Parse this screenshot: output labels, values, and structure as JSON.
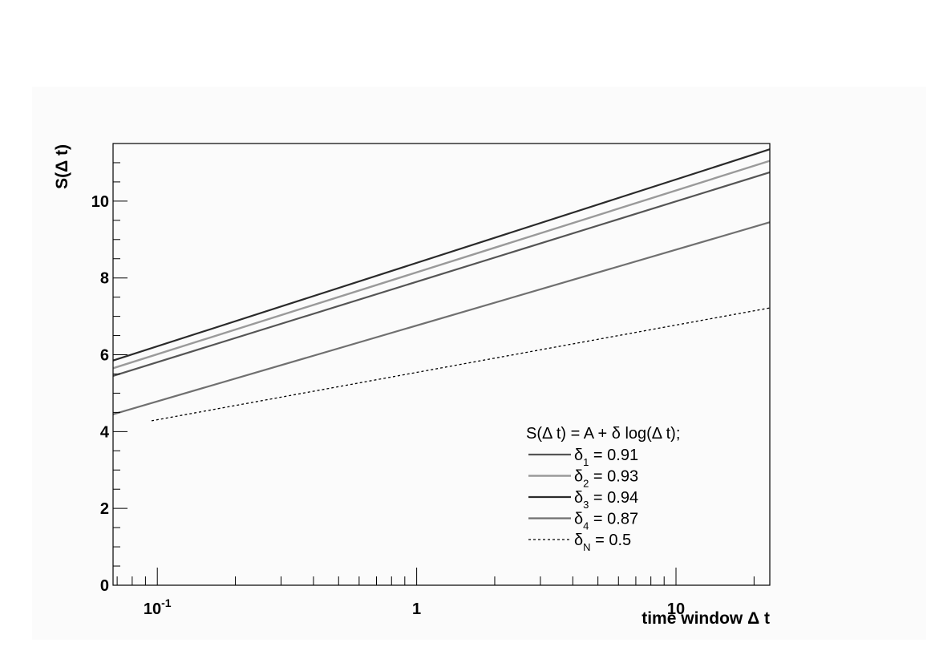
{
  "chart_data": {
    "type": "line",
    "xscale": "log",
    "xlim": [
      0.0675,
      23
    ],
    "ylim": [
      0,
      11.5
    ],
    "xlabel": "time window  Δ t",
    "ylabel": "S(Δ t)",
    "x_ticks": [
      {
        "value": 0.1,
        "base": "10",
        "exp": "-1"
      },
      {
        "value": 1,
        "base": "1",
        "exp": ""
      },
      {
        "value": 10,
        "base": "10",
        "exp": ""
      }
    ],
    "y_ticks": [
      0,
      2,
      4,
      6,
      8,
      10
    ],
    "grid": false,
    "legend_position": "bottom-right",
    "legend_title": "S(Δ t) = A + δ log(Δ t);",
    "series": [
      {
        "name": "δ1 = 0.91",
        "symbol": "δ",
        "sub": "1",
        "value_text": " = 0.91",
        "color": "#555555",
        "dash": "",
        "width": 2.2,
        "x": [
          0.0675,
          23
        ],
        "y": [
          5.45,
          10.75
        ]
      },
      {
        "name": "δ2 = 0.93",
        "symbol": "δ",
        "sub": "2",
        "value_text": " = 0.93",
        "color": "#9a9a9a",
        "dash": "",
        "width": 2.4,
        "x": [
          0.0675,
          23
        ],
        "y": [
          5.65,
          11.05
        ]
      },
      {
        "name": "δ3 = 0.94",
        "symbol": "δ",
        "sub": "3",
        "value_text": " = 0.94",
        "color": "#2a2a2a",
        "dash": "",
        "width": 2.2,
        "x": [
          0.0675,
          23
        ],
        "y": [
          5.85,
          11.35
        ]
      },
      {
        "name": "δ4 = 0.87",
        "symbol": "δ",
        "sub": "4",
        "value_text": " = 0.87",
        "color": "#707070",
        "dash": "",
        "width": 2.2,
        "x": [
          0.0675,
          23
        ],
        "y": [
          4.45,
          9.45
        ]
      },
      {
        "name": "δN = 0.5",
        "symbol": "δ",
        "sub": "N",
        "value_text": " = 0.5",
        "color": "#000000",
        "dash": "3,3",
        "width": 1.3,
        "x": [
          0.095,
          23
        ],
        "y": [
          4.28,
          7.22
        ]
      }
    ]
  }
}
